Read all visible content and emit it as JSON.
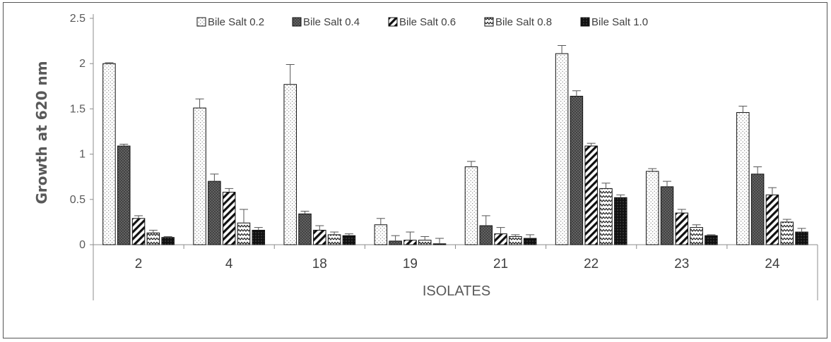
{
  "chart_data": {
    "type": "bar",
    "title": "",
    "xlabel": "ISOLATES",
    "ylabel": "Growth at 620 nm",
    "ylim": [
      0,
      2.5
    ],
    "yticks": [
      "0",
      "0.5",
      "1",
      "1.5",
      "2",
      "2.5"
    ],
    "ytick_values": [
      0,
      0.5,
      1,
      1.5,
      2,
      2.5
    ],
    "categories": [
      "2",
      "4",
      "18",
      "19",
      "21",
      "22",
      "23",
      "24"
    ],
    "legend_position": "top",
    "grid": false,
    "error_bars": true,
    "series": [
      {
        "name": "Bile Salt 0.2",
        "pattern": "dots",
        "values": [
          2.0,
          1.51,
          1.77,
          0.22,
          0.86,
          2.11,
          0.81,
          1.46
        ],
        "errors": [
          0.01,
          0.1,
          0.22,
          0.07,
          0.06,
          0.09,
          0.03,
          0.07
        ]
      },
      {
        "name": "Bile Salt 0.4",
        "pattern": "dark-crosshatch",
        "values": [
          1.09,
          0.7,
          0.34,
          0.04,
          0.21,
          1.64,
          0.64,
          0.78
        ],
        "errors": [
          0.02,
          0.08,
          0.03,
          0.06,
          0.11,
          0.06,
          0.06,
          0.08
        ]
      },
      {
        "name": "Bile Salt 0.6",
        "pattern": "diagonal",
        "values": [
          0.29,
          0.58,
          0.16,
          0.05,
          0.12,
          1.09,
          0.35,
          0.55
        ],
        "errors": [
          0.03,
          0.04,
          0.05,
          0.09,
          0.07,
          0.03,
          0.04,
          0.08
        ]
      },
      {
        "name": "Bile Salt 0.8",
        "pattern": "zigzag",
        "values": [
          0.13,
          0.24,
          0.11,
          0.05,
          0.09,
          0.62,
          0.19,
          0.25
        ],
        "errors": [
          0.03,
          0.15,
          0.03,
          0.04,
          0.02,
          0.06,
          0.03,
          0.03
        ]
      },
      {
        "name": "Bile Salt 1.0",
        "pattern": "black-dots",
        "values": [
          0.08,
          0.16,
          0.1,
          0.01,
          0.07,
          0.52,
          0.1,
          0.14
        ],
        "errors": [
          0.01,
          0.03,
          0.02,
          0.06,
          0.04,
          0.03,
          0.01,
          0.04
        ]
      }
    ]
  }
}
